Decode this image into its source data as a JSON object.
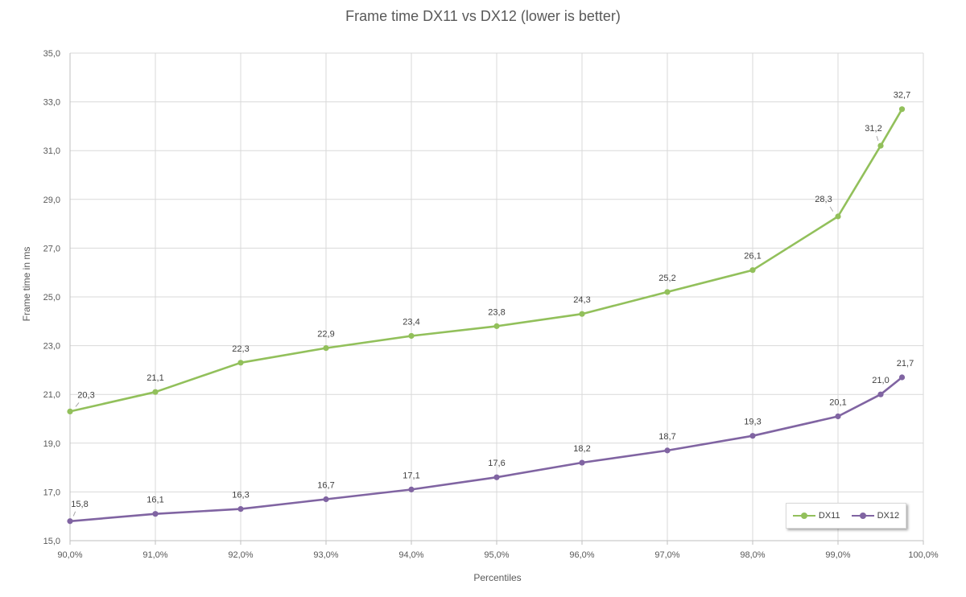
{
  "chart_data": {
    "type": "line",
    "title": "Frame time DX11 vs DX12 (lower is better)",
    "xlabel": "Percentiles",
    "ylabel": "Frame time in ms",
    "x": [
      90,
      91,
      92,
      93,
      94,
      95,
      96,
      97,
      98,
      99,
      99.5,
      99.75
    ],
    "xlim": [
      90,
      100
    ],
    "ylim": [
      15,
      35
    ],
    "xticks": [
      90,
      91,
      92,
      93,
      94,
      95,
      96,
      97,
      98,
      99,
      100
    ],
    "xtick_labels": [
      "90,0%",
      "91,0%",
      "92,0%",
      "93,0%",
      "94,0%",
      "95,0%",
      "96,0%",
      "97,0%",
      "98,0%",
      "99,0%",
      "100,0%"
    ],
    "yticks": [
      15,
      17,
      19,
      21,
      23,
      25,
      27,
      29,
      31,
      33,
      35
    ],
    "ytick_labels": [
      "15,0",
      "17,0",
      "19,0",
      "21,0",
      "23,0",
      "25,0",
      "27,0",
      "29,0",
      "31,0",
      "33,0",
      "35,0"
    ],
    "grid": true,
    "legend_position": "bottom-right",
    "series": [
      {
        "name": "DX11",
        "color": "#92c05b",
        "values": [
          20.3,
          21.1,
          22.3,
          22.9,
          23.4,
          23.8,
          24.3,
          25.2,
          26.1,
          28.3,
          31.2,
          32.7
        ],
        "labels": [
          "20,3",
          "21,1",
          "22,3",
          "22,9",
          "23,4",
          "23,8",
          "24,3",
          "25,2",
          "26,1",
          "28,3",
          "31,2",
          "32,7"
        ]
      },
      {
        "name": "DX12",
        "color": "#8064a2",
        "values": [
          15.8,
          16.1,
          16.3,
          16.7,
          17.1,
          17.6,
          18.2,
          18.7,
          19.3,
          20.1,
          21.0,
          21.7
        ],
        "labels": [
          "15,8",
          "16,1",
          "16,3",
          "16,7",
          "17,1",
          "17,6",
          "18,2",
          "18,7",
          "19,3",
          "20,1",
          "21,0",
          "21,7"
        ]
      }
    ]
  }
}
